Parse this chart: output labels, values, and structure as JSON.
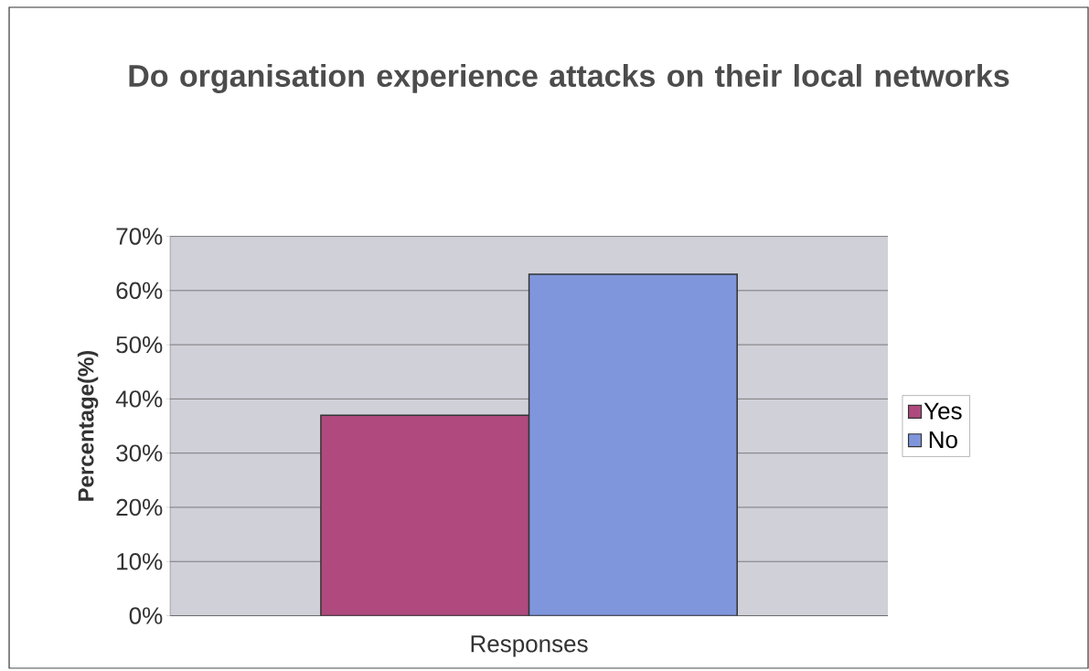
{
  "chart_data": {
    "type": "bar",
    "title": "Do organisation experience attacks on their local networks",
    "ylabel": "Percentage(%)",
    "categories": [
      "Responses"
    ],
    "series": [
      {
        "name": "Yes",
        "color": "#b04a7e",
        "values": [
          37
        ]
      },
      {
        "name": "No",
        "color": "#7f96dc",
        "values": [
          63
        ]
      }
    ],
    "ylim": [
      0,
      70
    ],
    "yticks": [
      {
        "value": 0,
        "label": "0%"
      },
      {
        "value": 10,
        "label": "10%"
      },
      {
        "value": 20,
        "label": "20%"
      },
      {
        "value": 30,
        "label": "30%"
      },
      {
        "value": 40,
        "label": "40%"
      },
      {
        "value": 50,
        "label": "50%"
      },
      {
        "value": 60,
        "label": "60%"
      },
      {
        "value": 70,
        "label": "70%"
      }
    ],
    "grid": "y",
    "legend": "right"
  }
}
